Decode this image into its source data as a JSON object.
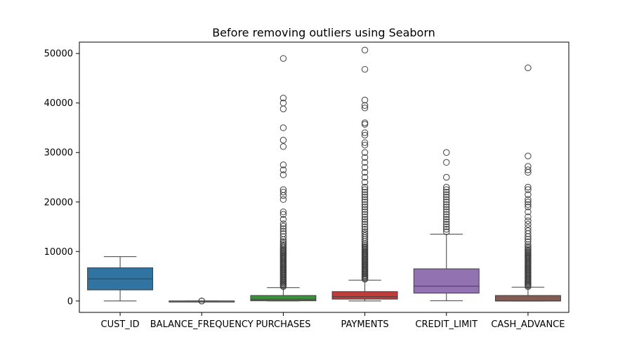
{
  "chart_data": {
    "type": "box",
    "title": "Before removing outliers using Seaborn",
    "xlabel": "",
    "ylabel": "",
    "ylim": [
      -2300,
      52300
    ],
    "yticks": [
      0,
      10000,
      20000,
      30000,
      40000,
      50000
    ],
    "ytick_labels": [
      "0",
      "10000",
      "20000",
      "30000",
      "40000",
      "50000"
    ],
    "grid": false,
    "categories": [
      "CUST_ID",
      "BALANCE_FREQUENCY",
      "PURCHASES",
      "PAYMENTS",
      "CREDIT_LIMIT",
      "CASH_ADVANCE"
    ],
    "boxes": [
      {
        "category": "CUST_ID",
        "color": "#3274a1",
        "whisker_low": 1,
        "q1": 2240,
        "median": 4475,
        "q3": 6710,
        "whisker_high": 8950,
        "outliers": []
      },
      {
        "category": "BALANCE_FREQUENCY",
        "color": "#e1812c",
        "whisker_low": 0.6,
        "q1": 0.89,
        "median": 1.0,
        "q3": 1.0,
        "whisker_high": 1.0,
        "outliers": [
          0.1,
          0.3,
          0.5
        ]
      },
      {
        "category": "PURCHASES",
        "color": "#3a923a",
        "whisker_low": 0,
        "q1": 40,
        "median": 360,
        "q3": 1110,
        "whisker_high": 2700,
        "outliers": [
          2900,
          3100,
          3300,
          3500,
          3700,
          3900,
          4100,
          4300,
          4500,
          4700,
          4900,
          5100,
          5300,
          5500,
          5700,
          5900,
          6100,
          6300,
          6500,
          6700,
          6900,
          7100,
          7300,
          7500,
          7700,
          7900,
          8100,
          8300,
          8500,
          8700,
          8900,
          9100,
          9300,
          9500,
          9700,
          9900,
          10100,
          10300,
          10500,
          10800,
          11100,
          11400,
          11700,
          12000,
          12400,
          13000,
          13600,
          14100,
          14600,
          15100,
          15600,
          16500,
          17500,
          18000,
          20500,
          21300,
          22000,
          22500,
          25500,
          26500,
          27500,
          31200,
          32500,
          35000,
          38800,
          40000,
          41000,
          49000
        ]
      },
      {
        "category": "PAYMENTS",
        "color": "#c03d3e",
        "whisker_low": 0,
        "q1": 380,
        "median": 860,
        "q3": 1900,
        "whisker_high": 4200,
        "outliers": [
          4400,
          4600,
          4800,
          5000,
          5200,
          5400,
          5600,
          5800,
          6000,
          6200,
          6400,
          6600,
          6800,
          7000,
          7200,
          7400,
          7600,
          7800,
          8000,
          8200,
          8400,
          8600,
          8800,
          9000,
          9200,
          9400,
          9600,
          9800,
          10000,
          10200,
          10400,
          10600,
          10800,
          11000,
          11300,
          11600,
          12000,
          12400,
          12800,
          13200,
          13600,
          14000,
          14500,
          15000,
          15500,
          16000,
          16500,
          17000,
          17500,
          18000,
          18500,
          19000,
          19500,
          20000,
          20500,
          21000,
          21500,
          22000,
          22500,
          23000,
          24000,
          25000,
          26000,
          27000,
          28000,
          29000,
          30000,
          31500,
          32000,
          33500,
          34000,
          35700,
          36000,
          39000,
          39500,
          40600,
          46800,
          50700
        ]
      },
      {
        "category": "CREDIT_LIMIT",
        "color": "#9372b2",
        "whisker_low": 50,
        "q1": 1600,
        "median": 3000,
        "q3": 6500,
        "whisker_high": 13500,
        "outliers": [
          14000,
          14500,
          15000,
          15500,
          16000,
          16500,
          17000,
          17500,
          18000,
          18500,
          19000,
          19500,
          20000,
          20500,
          21000,
          21500,
          22000,
          22500,
          23000,
          25000,
          28000,
          30000
        ]
      },
      {
        "category": "CASH_ADVANCE",
        "color": "#845b53",
        "whisker_low": 0,
        "q1": 0,
        "median": 0,
        "q3": 1110,
        "whisker_high": 2780,
        "outliers": [
          2900,
          3100,
          3300,
          3500,
          3700,
          3900,
          4100,
          4300,
          4500,
          4700,
          4900,
          5100,
          5300,
          5500,
          5700,
          5900,
          6100,
          6300,
          6500,
          6700,
          6900,
          7100,
          7300,
          7500,
          7700,
          7900,
          8100,
          8300,
          8500,
          8700,
          8900,
          9100,
          9300,
          9500,
          9700,
          9900,
          10100,
          10400,
          10700,
          11000,
          11400,
          12000,
          12500,
          13000,
          13600,
          14200,
          14800,
          15500,
          16200,
          17000,
          18000,
          19000,
          19500,
          20000,
          20500,
          21500,
          22500,
          23000,
          26000,
          26500,
          27200,
          29300,
          47100
        ]
      }
    ]
  }
}
